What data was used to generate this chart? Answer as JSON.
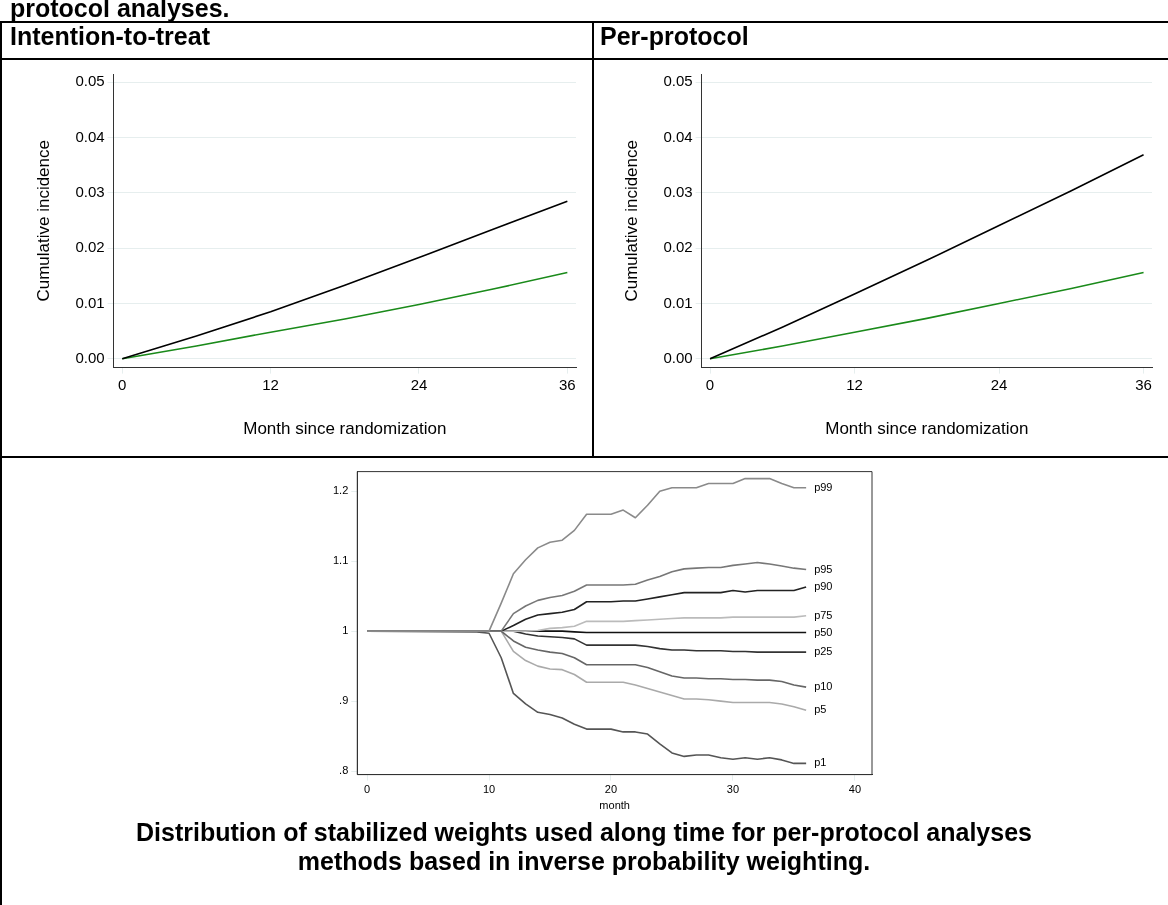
{
  "chart_data": [
    {
      "type": "line",
      "title": "Intention-to-treat",
      "annotations": [
        "protocol analyses."
      ],
      "xlabel": "Month since randomization",
      "ylabel": "Cumulative incidence",
      "x": [
        0,
        6,
        12,
        18,
        24,
        30,
        36
      ],
      "xlim": [
        -0.7,
        36.7
      ],
      "xticks": [
        0,
        12,
        24,
        36
      ],
      "ylim": [
        -0.0016,
        0.0515
      ],
      "yticks": [
        {
          "value": 0,
          "label": "0.00"
        },
        {
          "value": 0.01,
          "label": "0.01"
        },
        {
          "value": 0.02,
          "label": "0.02"
        },
        {
          "value": 0.03,
          "label": "0.03"
        },
        {
          "value": 0.04,
          "label": "0.04"
        },
        {
          "value": 0.05,
          "label": "0.05"
        }
      ],
      "grid": "y",
      "legend": false,
      "series": [
        {
          "color": "#000000",
          "values": [
            0,
            0.0041,
            0.0085,
            0.0133,
            0.0183,
            0.0234,
            0.0285
          ]
        },
        {
          "color": "#1a8a1a",
          "values": [
            0,
            0.0023,
            0.0048,
            0.0072,
            0.0098,
            0.0126,
            0.0156
          ]
        }
      ]
    },
    {
      "type": "line",
      "title": "Per-protocol",
      "xlabel": "Month since randomization",
      "ylabel": "Cumulative incidence",
      "x": [
        0,
        6,
        12,
        18,
        24,
        30,
        36
      ],
      "xlim": [
        -0.7,
        36.7
      ],
      "xticks": [
        0,
        12,
        24,
        36
      ],
      "ylim": [
        -0.0016,
        0.0515
      ],
      "yticks": [
        {
          "value": 0,
          "label": "0.00"
        },
        {
          "value": 0.01,
          "label": "0.01"
        },
        {
          "value": 0.02,
          "label": "0.02"
        },
        {
          "value": 0.03,
          "label": "0.03"
        },
        {
          "value": 0.04,
          "label": "0.04"
        },
        {
          "value": 0.05,
          "label": "0.05"
        }
      ],
      "grid": "y",
      "legend": false,
      "series": [
        {
          "color": "#000000",
          "values": [
            0,
            0.0057,
            0.0117,
            0.0178,
            0.0241,
            0.0304,
            0.0369
          ]
        },
        {
          "color": "#1a8a1a",
          "values": [
            0,
            0.0023,
            0.0048,
            0.0073,
            0.01,
            0.0127,
            0.0156
          ]
        }
      ]
    },
    {
      "type": "line",
      "xlabel": "month",
      "annotations": [
        "Distribution of stabilized weights used along time for per-protocol analyses methods based in inverse probability weighting."
      ],
      "x": [
        0,
        9,
        10,
        11,
        12,
        13,
        14,
        15,
        16,
        17,
        18,
        19,
        20,
        21,
        22,
        23,
        24,
        25,
        26,
        27,
        28,
        29,
        30,
        31,
        32,
        33,
        34,
        35,
        36
      ],
      "xlim": [
        -0.8,
        41.4
      ],
      "xticks": [
        0,
        10,
        20,
        30,
        40
      ],
      "ylim": [
        0.795,
        1.228
      ],
      "yticks": [
        {
          "value": 0.8,
          "label": ".8"
        },
        {
          "value": 0.9,
          "label": ".9"
        },
        1,
        1.1,
        1.2
      ],
      "grid": false,
      "legend": false,
      "series": [
        {
          "name": "p99",
          "color": "#8a8a8a",
          "values": [
            1,
            1,
            1,
            1.04,
            1.082,
            1.102,
            1.119,
            1.127,
            1.13,
            1.144,
            1.167,
            1.167,
            1.167,
            1.173,
            1.162,
            1.18,
            1.2,
            1.205,
            1.205,
            1.205,
            1.211,
            1.211,
            1.211,
            1.218,
            1.218,
            1.218,
            1.211,
            1.205,
            1.205
          ]
        },
        {
          "name": "p95",
          "color": "#777777",
          "values": [
            1,
            1,
            1,
            1,
            1.025,
            1.036,
            1.044,
            1.048,
            1.051,
            1.057,
            1.066,
            1.066,
            1.066,
            1.066,
            1.067,
            1.073,
            1.078,
            1.085,
            1.089,
            1.09,
            1.091,
            1.091,
            1.094,
            1.096,
            1.098,
            1.096,
            1.093,
            1.09,
            1.088
          ]
        },
        {
          "name": "p90",
          "color": "#222222",
          "values": [
            1,
            1,
            1,
            1,
            1.008,
            1.017,
            1.023,
            1.025,
            1.027,
            1.031,
            1.042,
            1.042,
            1.042,
            1.043,
            1.043,
            1.046,
            1.049,
            1.052,
            1.055,
            1.055,
            1.055,
            1.055,
            1.058,
            1.056,
            1.058,
            1.058,
            1.058,
            1.058,
            1.063
          ]
        },
        {
          "name": "p75",
          "color": "#bbbbbb",
          "values": [
            1,
            1,
            1,
            1,
            1,
            1,
            1.001,
            1.004,
            1.005,
            1.007,
            1.014,
            1.014,
            1.014,
            1.014,
            1.015,
            1.016,
            1.017,
            1.018,
            1.019,
            1.019,
            1.019,
            1.019,
            1.02,
            1.02,
            1.02,
            1.02,
            1.02,
            1.02,
            1.022
          ]
        },
        {
          "name": "p50",
          "color": "#111111",
          "values": [
            1,
            1,
            1,
            1,
            1,
            1,
            1,
            1,
            1,
            0.999,
            0.998,
            0.998,
            0.998,
            0.998,
            0.998,
            0.998,
            0.998,
            0.998,
            0.998,
            0.998,
            0.998,
            0.998,
            0.998,
            0.998,
            0.998,
            0.998,
            0.998,
            0.998,
            0.998
          ]
        },
        {
          "name": "p25",
          "color": "#333333",
          "values": [
            1,
            1,
            1,
            1,
            1,
            0.996,
            0.993,
            0.992,
            0.991,
            0.989,
            0.98,
            0.98,
            0.98,
            0.98,
            0.98,
            0.978,
            0.975,
            0.973,
            0.973,
            0.972,
            0.972,
            0.972,
            0.971,
            0.971,
            0.97,
            0.97,
            0.97,
            0.97,
            0.97
          ]
        },
        {
          "name": "p10",
          "color": "#666666",
          "values": [
            1,
            1,
            1,
            1,
            0.986,
            0.977,
            0.973,
            0.97,
            0.968,
            0.962,
            0.952,
            0.952,
            0.952,
            0.952,
            0.952,
            0.948,
            0.942,
            0.936,
            0.933,
            0.933,
            0.932,
            0.932,
            0.931,
            0.931,
            0.93,
            0.93,
            0.928,
            0.923,
            0.92
          ]
        },
        {
          "name": "p5",
          "color": "#aaaaaa",
          "values": [
            1,
            1,
            1,
            1,
            0.971,
            0.958,
            0.95,
            0.946,
            0.945,
            0.938,
            0.927,
            0.927,
            0.927,
            0.927,
            0.923,
            0.918,
            0.913,
            0.908,
            0.903,
            0.903,
            0.902,
            0.9,
            0.898,
            0.898,
            0.898,
            0.898,
            0.896,
            0.892,
            0.887
          ]
        },
        {
          "name": "p1",
          "color": "#555555",
          "values": [
            1,
            0.999,
            0.997,
            0.962,
            0.911,
            0.896,
            0.884,
            0.881,
            0.876,
            0.867,
            0.86,
            0.86,
            0.86,
            0.856,
            0.856,
            0.853,
            0.839,
            0.826,
            0.821,
            0.823,
            0.823,
            0.819,
            0.817,
            0.819,
            0.817,
            0.819,
            0.816,
            0.811,
            0.811
          ]
        }
      ]
    }
  ]
}
